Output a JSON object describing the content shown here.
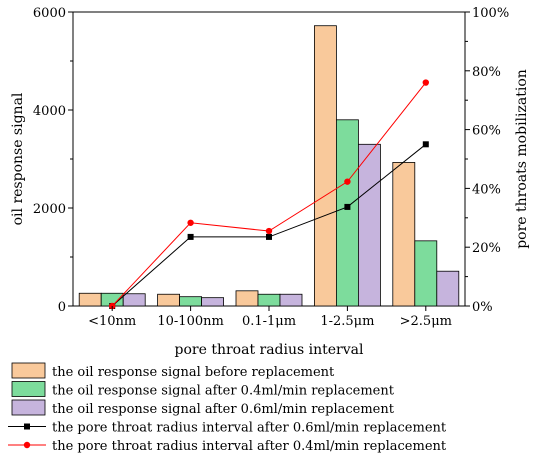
{
  "chart_data": {
    "type": "bar",
    "xlabel": "pore throat radius interval",
    "ylabel": "oil response signal",
    "y2label": "pore throats mobilization",
    "categories": [
      "<10nm",
      "10-100nm",
      "0.1-1μm",
      "1-2.5μm",
      ">2.5μm"
    ],
    "ylim": [
      0,
      6000
    ],
    "y_ticks": [
      "0",
      "2000",
      "4000",
      "6000"
    ],
    "y2lim": [
      0,
      100
    ],
    "y2_ticks": [
      "0%",
      "20%",
      "40%",
      "60%",
      "80%",
      "100%"
    ],
    "y2_unit": "%",
    "grid": false,
    "legend_position": "below",
    "series": [
      {
        "name": "the oil response signal before replacement",
        "kind": "bar",
        "color": "#f9c99b",
        "values": [
          260,
          240,
          310,
          5720,
          2930
        ]
      },
      {
        "name": "the oil response signal after 0.4ml/min replacement",
        "kind": "bar",
        "color": "#7ddc9c",
        "values": [
          260,
          190,
          240,
          3800,
          1330
        ]
      },
      {
        "name": "the oil response signal after 0.6ml/min replacement",
        "kind": "bar",
        "color": "#c6b4dd",
        "values": [
          250,
          170,
          240,
          3300,
          710
        ]
      },
      {
        "name": "the pore throat radius interval after 0.6ml/min replacement",
        "kind": "line",
        "axis": "right",
        "color": "#000000",
        "marker": "square",
        "values": [
          0,
          23.5,
          23.5,
          33.7,
          55
        ]
      },
      {
        "name": "the pore throat radius interval after 0.4ml/min replacement",
        "kind": "line",
        "axis": "right",
        "color": "#ff0000",
        "marker": "circle",
        "values": [
          0,
          28.3,
          25.5,
          42.3,
          76
        ]
      }
    ]
  }
}
